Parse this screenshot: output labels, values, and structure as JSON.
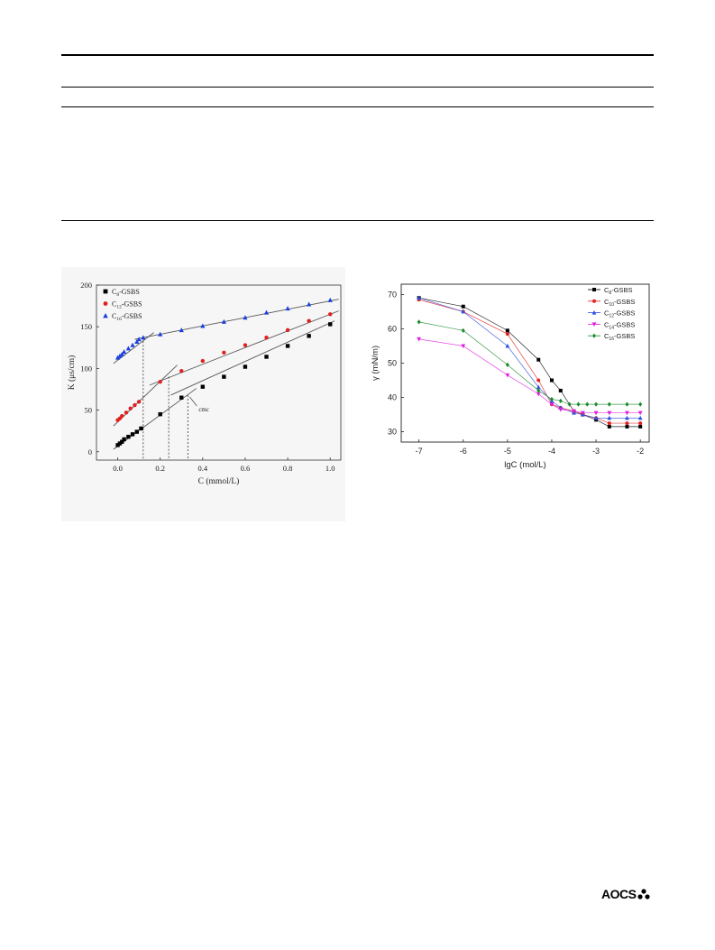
{
  "publisher": {
    "logo_text": "AOCS"
  },
  "chart_data": [
    {
      "type": "scatter",
      "title": "",
      "xlabel": "C (mmol/L)",
      "ylabel": "K (μs/cm)",
      "xlim": [
        -0.1,
        1.05
      ],
      "ylim": [
        -10,
        200
      ],
      "xticks": [
        "0.0",
        "0.2",
        "0.4",
        "0.6",
        "0.8",
        "1.0"
      ],
      "yticks": [
        "0",
        "50",
        "100",
        "150",
        "200"
      ],
      "legend_position": "top-left",
      "annotation": "cmc",
      "cmc_marks": [
        0.12,
        0.24,
        0.33
      ],
      "series": [
        {
          "name_main": "C",
          "name_sub": "8",
          "name_suffix": "-GSBS",
          "color": "#000000",
          "marker": "square",
          "x": [
            0.0,
            0.01,
            0.02,
            0.03,
            0.05,
            0.07,
            0.09,
            0.11,
            0.2,
            0.3,
            0.4,
            0.5,
            0.6,
            0.7,
            0.8,
            0.9,
            1.0
          ],
          "y": [
            8,
            10,
            12,
            15,
            18,
            21,
            24,
            28,
            45,
            65,
            78,
            90,
            102,
            114,
            127,
            139,
            153
          ]
        },
        {
          "name_main": "C",
          "name_sub": "12",
          "name_suffix": "-GSBS",
          "color": "#e02020",
          "marker": "circle",
          "x": [
            0.0,
            0.01,
            0.02,
            0.04,
            0.06,
            0.08,
            0.1,
            0.2,
            0.3,
            0.4,
            0.5,
            0.6,
            0.7,
            0.8,
            0.9,
            1.0
          ],
          "y": [
            38,
            40,
            43,
            47,
            52,
            56,
            60,
            84,
            97,
            109,
            119,
            128,
            137,
            146,
            157,
            165
          ]
        },
        {
          "name_main": "C",
          "name_sub": "16",
          "name_suffix": "-GSBS",
          "color": "#1a3ee0",
          "marker": "triangle",
          "x": [
            0.0,
            0.01,
            0.02,
            0.03,
            0.05,
            0.07,
            0.09,
            0.1,
            0.12,
            0.2,
            0.3,
            0.4,
            0.5,
            0.6,
            0.7,
            0.8,
            0.9,
            1.0
          ],
          "y": [
            113,
            115,
            117,
            120,
            124,
            128,
            132,
            135,
            137,
            141,
            146,
            151,
            156,
            161,
            167,
            172,
            177,
            182
          ]
        }
      ],
      "fit_lines": [
        {
          "color": "#555555",
          "points": [
            [
              -0.02,
              3
            ],
            [
              0.37,
              76
            ]
          ]
        },
        {
          "color": "#555555",
          "points": [
            [
              0.25,
              68
            ],
            [
              1.02,
              157
            ]
          ]
        },
        {
          "color": "#555555",
          "points": [
            [
              -0.02,
              31
            ],
            [
              0.28,
              104
            ]
          ]
        },
        {
          "color": "#555555",
          "points": [
            [
              0.15,
              80
            ],
            [
              1.04,
              169
            ]
          ]
        },
        {
          "color": "#555555",
          "points": [
            [
              -0.02,
              106
            ],
            [
              0.17,
              143
            ]
          ]
        },
        {
          "color": "#555555",
          "points": [
            [
              0.08,
              135
            ],
            [
              1.04,
              183
            ]
          ]
        }
      ]
    },
    {
      "type": "line",
      "title": "",
      "xlabel": "lgC (mol/L)",
      "ylabel": "γ (mN/m)",
      "xlim": [
        -7.4,
        -1.8
      ],
      "ylim": [
        27,
        73
      ],
      "xticks": [
        "-7",
        "-6",
        "-5",
        "-4",
        "-3",
        "-2"
      ],
      "yticks": [
        "30",
        "40",
        "50",
        "60",
        "70"
      ],
      "legend_position": "top-right",
      "series": [
        {
          "name_main": "C",
          "name_sub": "8",
          "name_suffix": "-GSBS",
          "color": "#000000",
          "marker": "square",
          "x": [
            -7,
            -6,
            -5,
            -4.3,
            -4,
            -3.8,
            -3.5,
            -3.3,
            -3,
            -2.7,
            -2.3,
            -2
          ],
          "y": [
            69,
            66.5,
            59.5,
            51,
            45,
            42,
            36,
            35,
            33.5,
            31.5,
            31.5,
            31.5
          ]
        },
        {
          "name_main": "C",
          "name_sub": "10",
          "name_suffix": "-GSBS",
          "color": "#e02020",
          "marker": "circle",
          "x": [
            -7,
            -6,
            -5,
            -4.3,
            -4,
            -3.8,
            -3.5,
            -3.3,
            -3,
            -2.7,
            -2.3,
            -2
          ],
          "y": [
            68.5,
            65,
            58.5,
            45,
            38,
            37,
            36,
            35,
            34,
            32.5,
            32.5,
            32.5
          ]
        },
        {
          "name_main": "C",
          "name_sub": "12",
          "name_suffix": "-GSBS",
          "color": "#3050e0",
          "marker": "triangle",
          "x": [
            -7,
            -6,
            -5,
            -4.3,
            -4,
            -3.8,
            -3.5,
            -3.3,
            -3,
            -2.7,
            -2.3,
            -2
          ],
          "y": [
            69,
            65,
            55,
            43,
            39,
            37,
            35.5,
            35,
            34,
            34,
            34,
            34
          ]
        },
        {
          "name_main": "C",
          "name_sub": "14",
          "name_suffix": "-GSBS",
          "color": "#e020e0",
          "marker": "triangle-down",
          "x": [
            -7,
            -6,
            -5,
            -4.3,
            -4,
            -3.8,
            -3.5,
            -3.3,
            -3,
            -2.7,
            -2.3,
            -2
          ],
          "y": [
            57,
            55,
            46.5,
            41,
            38,
            36.5,
            36,
            35.5,
            35.5,
            35.5,
            35.5,
            35.5
          ]
        },
        {
          "name_main": "C",
          "name_sub": "16",
          "name_suffix": "-GSBS",
          "color": "#1a8a2a",
          "marker": "diamond",
          "x": [
            -7,
            -6,
            -5,
            -4.3,
            -4,
            -3.8,
            -3.6,
            -3.4,
            -3.2,
            -3,
            -2.7,
            -2.3,
            -2
          ],
          "y": [
            62,
            59.5,
            49.5,
            42,
            39.5,
            39,
            38,
            38,
            38,
            38,
            38,
            38,
            38
          ]
        }
      ]
    }
  ]
}
